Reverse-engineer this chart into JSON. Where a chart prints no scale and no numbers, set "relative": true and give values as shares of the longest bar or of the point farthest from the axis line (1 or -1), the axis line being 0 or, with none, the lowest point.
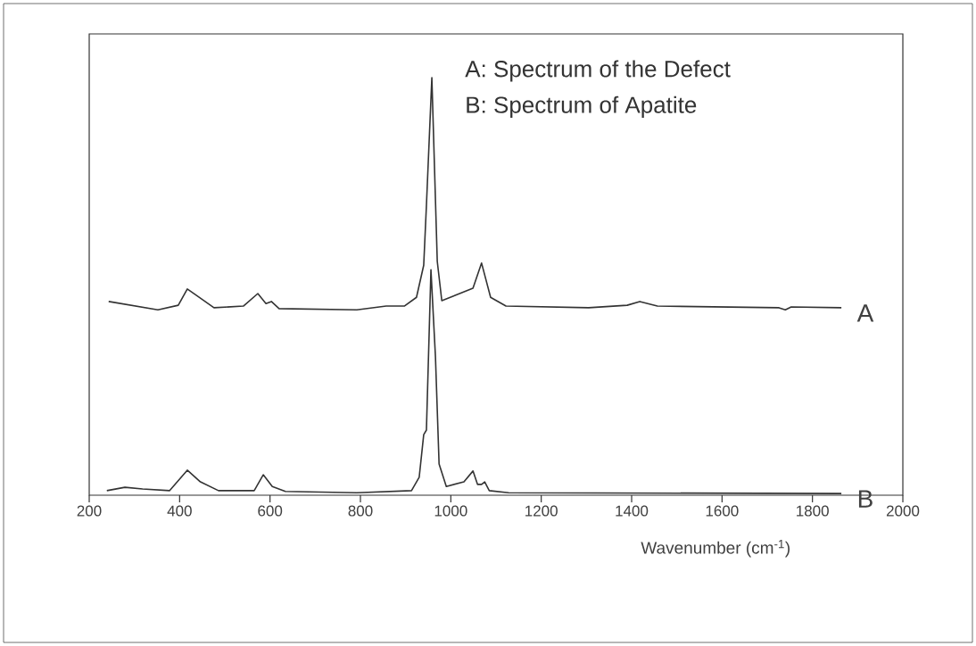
{
  "chart_data": {
    "type": "line",
    "relative": true,
    "xlabel": "Wavenumber (cm$^{-1}$)",
    "xlim": [
      200,
      2000
    ],
    "xticks": [
      200,
      400,
      600,
      800,
      1000,
      1200,
      1400,
      1600,
      1800,
      2000
    ],
    "annotations": [
      "A: Spectrum of the Defect",
      "B: Spectrum of Apatite"
    ],
    "series": [
      {
        "name": "A",
        "color": "#333333",
        "x": [
          243,
          352,
          397,
          417,
          441,
          476,
          541,
          573,
          591,
          603,
          620,
          792,
          857,
          897,
          924,
          940,
          946,
          958,
          970,
          980,
          1049,
          1068,
          1088,
          1122,
          1305,
          1390,
          1418,
          1457,
          1726,
          1740,
          1753,
          1864
        ],
        "values": [
          0.464,
          0.444,
          0.455,
          0.494,
          0.476,
          0.449,
          0.453,
          0.483,
          0.459,
          0.464,
          0.447,
          0.444,
          0.453,
          0.453,
          0.474,
          0.551,
          0.694,
          1.0,
          0.56,
          0.466,
          0.496,
          0.556,
          0.474,
          0.453,
          0.449,
          0.455,
          0.464,
          0.453,
          0.449,
          0.444,
          0.451,
          0.449
        ]
      },
      {
        "name": "B",
        "color": "#333333",
        "x": [
          239,
          279,
          318,
          378,
          417,
          446,
          486,
          565,
          585,
          605,
          634,
          792,
          913,
          930,
          940,
          946,
          956,
          966,
          974,
          990,
          1029,
          1049,
          1059,
          1068,
          1075,
          1085,
          1128,
          1864
        ],
        "values": [
          0.011,
          0.019,
          0.015,
          0.011,
          0.06,
          0.032,
          0.011,
          0.011,
          0.049,
          0.021,
          0.009,
          0.006,
          0.011,
          0.043,
          0.145,
          0.156,
          0.54,
          0.331,
          0.075,
          0.021,
          0.032,
          0.058,
          0.026,
          0.026,
          0.032,
          0.011,
          0.006,
          0.004
        ]
      }
    ]
  }
}
